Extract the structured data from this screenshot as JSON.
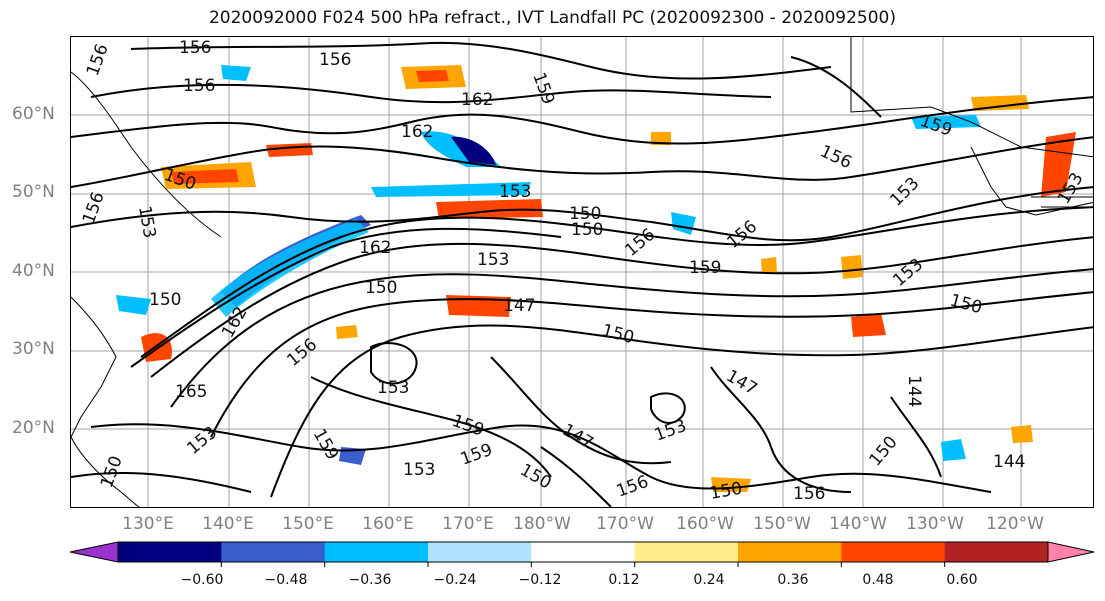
{
  "title": "2020092000 F024 500 hPa refract., IVT Landfall PC (2020092300 - 2020092500)",
  "lat_labels": [
    "60°N",
    "50°N",
    "40°N",
    "30°N",
    "20°N"
  ],
  "lon_labels": [
    "130°E",
    "140°E",
    "150°E",
    "160°E",
    "170°E",
    "180°W",
    "170°W",
    "160°W",
    "150°W",
    "140°W",
    "130°W",
    "120°W"
  ],
  "colorbar": {
    "colors": [
      "#9932cc",
      "#000080",
      "#3a5fcd",
      "#00bfff",
      "#b0e2ff",
      "#ffffff",
      "#ffec8b",
      "#ffa500",
      "#ff4500",
      "#b22222",
      "#ff82ab"
    ],
    "tick_labels": [
      "−0.60",
      "−0.48",
      "−0.36",
      "−0.24",
      "−0.12",
      "0.12",
      "0.24",
      "0.36",
      "0.48",
      "0.60"
    ]
  },
  "contour_labels": [
    {
      "text": "156"
    },
    {
      "text": "156"
    },
    {
      "text": "156"
    },
    {
      "text": "156"
    },
    {
      "text": "159"
    },
    {
      "text": "162"
    },
    {
      "text": "162"
    },
    {
      "text": "159"
    },
    {
      "text": "156"
    },
    {
      "text": "153"
    },
    {
      "text": "153"
    },
    {
      "text": "156"
    },
    {
      "text": "153"
    },
    {
      "text": "150"
    },
    {
      "text": "153"
    },
    {
      "text": "156"
    },
    {
      "text": "156"
    },
    {
      "text": "162"
    },
    {
      "text": "153"
    },
    {
      "text": "150"
    },
    {
      "text": "159"
    },
    {
      "text": "150"
    },
    {
      "text": "153"
    },
    {
      "text": "150"
    },
    {
      "text": "150"
    },
    {
      "text": "147"
    },
    {
      "text": "150"
    },
    {
      "text": "150"
    },
    {
      "text": "162"
    },
    {
      "text": "156"
    },
    {
      "text": "153"
    },
    {
      "text": "147"
    },
    {
      "text": "165"
    },
    {
      "text": "159"
    },
    {
      "text": "159"
    },
    {
      "text": "147"
    },
    {
      "text": "153"
    },
    {
      "text": "144"
    },
    {
      "text": "150"
    },
    {
      "text": "153"
    },
    {
      "text": "153"
    },
    {
      "text": "159"
    },
    {
      "text": "150"
    },
    {
      "text": "156"
    },
    {
      "text": "150"
    },
    {
      "text": "156"
    },
    {
      "text": "144"
    },
    {
      "text": "150"
    }
  ]
}
